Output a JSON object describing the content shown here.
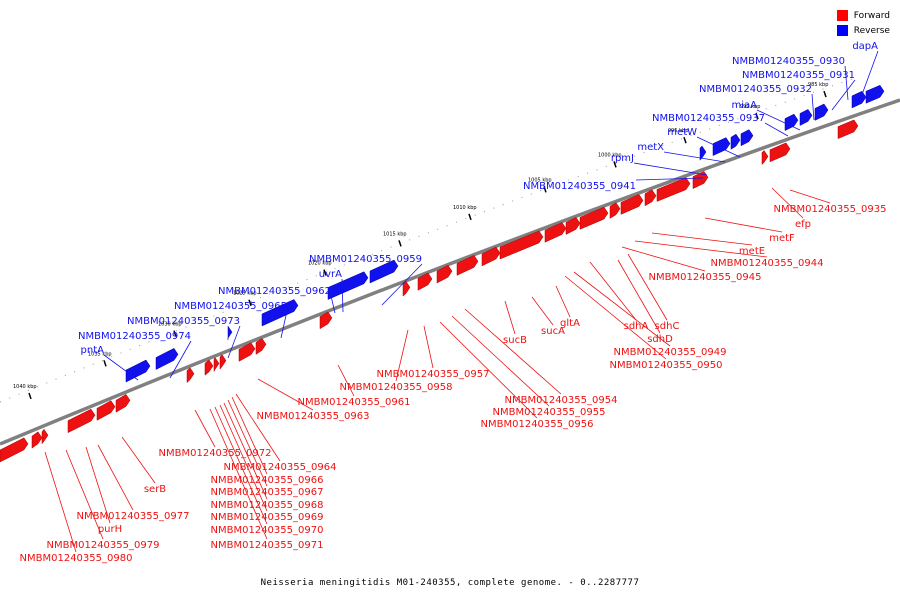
{
  "caption": "Neisseria meningitidis M01-240355, complete genome. - 0..2287777",
  "legend": [
    {
      "label": "Forward",
      "color": "#ff0000"
    },
    {
      "label": "Reverse",
      "color": "#0000ff"
    }
  ],
  "colors": {
    "forward": "#ee1111",
    "reverse": "#1111ee",
    "backbone": "#808080"
  },
  "ticks": [
    "1040 kbp",
    "1035 kbp",
    "1030 kbp",
    "1025 kbp",
    "1020 kbp",
    "1015 kbp",
    "1010 kbp",
    "1005 kbp",
    "1000 kbp",
    "995 kbp",
    "990 kbp",
    "985 kbp"
  ],
  "reverse_labels": [
    "dapA",
    "NMBM01240355_0930",
    "NMBM01240355_0931",
    "NMBM01240355_0932",
    "miaA",
    "NMBM01240355_0937",
    "metW",
    "metX",
    "rpmJ",
    "NMBM01240355_0941",
    "NMBM01240355_0959",
    "uvrA",
    "NMBM01240355_0962",
    "NMBM01240355_0965",
    "NMBM01240355_0973",
    "NMBM01240355_0974",
    "pntA"
  ],
  "forward_labels": [
    "NMBM01240355_0935",
    "efp",
    "metF",
    "metE",
    "NMBM01240355_0944",
    "NMBM01240355_0945",
    "sdhC",
    "sdhD",
    "sdhA",
    "NMBM01240355_0949",
    "NMBM01240355_0950",
    "gltA",
    "sucA",
    "sucB",
    "NMBM01240355_0954",
    "NMBM01240355_0955",
    "NMBM01240355_0956",
    "NMBM01240355_0957",
    "NMBM01240355_0958",
    "NMBM01240355_0961",
    "NMBM01240355_0963",
    "NMBM01240355_0964",
    "NMBM01240355_0966",
    "NMBM01240355_0967",
    "NMBM01240355_0968",
    "NMBM01240355_0969",
    "NMBM01240355_0970",
    "NMBM01240355_0971",
    "NMBM01240355_0972",
    "serB",
    "NMBM01240355_0977",
    "purH",
    "NMBM01240355_0979",
    "NMBM01240355_0980"
  ]
}
